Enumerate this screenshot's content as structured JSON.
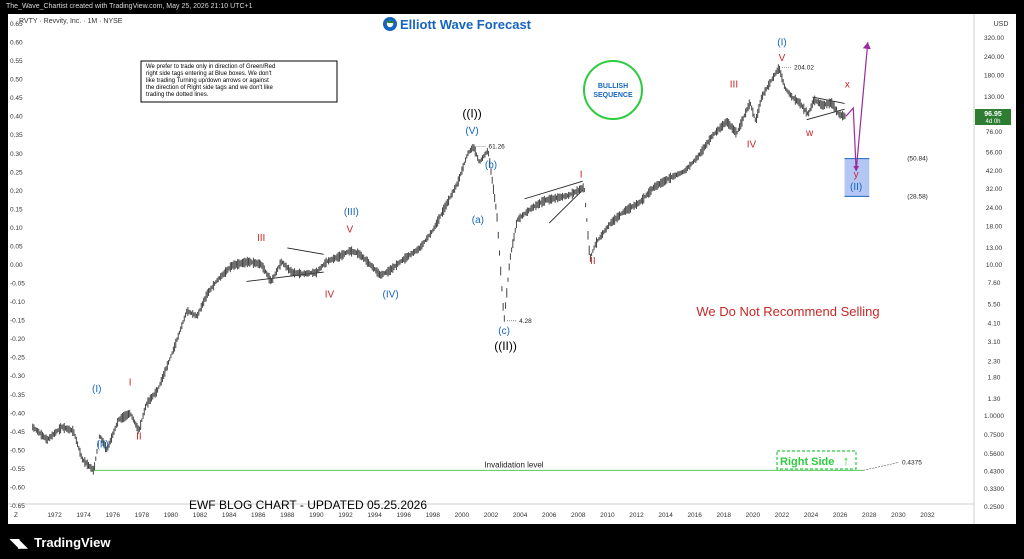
{
  "header": {
    "caption": "The_Wave_Chartist created with TradingView.com, May 25, 2026 21:10 UTC+1",
    "symbol_line": "RVTY · Revvity, Inc. · 1M · NYSE"
  },
  "footer": {
    "brand": "TradingView",
    "brand_icon": "tradingview-logo-icon"
  },
  "brand": {
    "name": "Elliott Wave Forecast",
    "icon": "ewf-logo-icon",
    "color": "#1565c0",
    "accent": "#2e7d32"
  },
  "notice": {
    "lines": [
      "We prefer to trade only in direction of Green/Red",
      "right side tags entering at Blue boxes. We don't",
      "like trading Turning up/down arrows or against",
      "the direction of Right side tags and we don't like",
      "trading the dotted lines."
    ]
  },
  "bullish": {
    "line1": "BULLISH",
    "line2": "SEQUENCE",
    "color": "#1565c0",
    "ring_color": "#2ecc40"
  },
  "warning_text": "We Do Not Recommend Selling",
  "blog_title": "EWF BLOG CHART - UPDATED 05.25.2026",
  "right_side": {
    "label": "Right Side",
    "arrow": "↑",
    "color": "#2ecc40"
  },
  "invalidation": {
    "label": "Invalidation level",
    "value": "0.4375"
  },
  "left_axis": {
    "ticks": [
      "0.65",
      "0.60",
      "0.55",
      "0.50",
      "0.45",
      "0.40",
      "0.35",
      "0.30",
      "0.25",
      "0.20",
      "0.15",
      "0.10",
      "0.05",
      "0.00",
      "-0.05",
      "-0.10",
      "-0.15",
      "-0.20",
      "-0.25",
      "-0.30",
      "-0.35",
      "-0.40",
      "-0.45",
      "-0.50",
      "-0.55",
      "-0.60",
      "-0.65"
    ]
  },
  "right_axis": {
    "currency": "USD",
    "ticks": [
      "320.00",
      "240.00",
      "180.00",
      "130.00",
      "96.95",
      "76.00",
      "56.00",
      "42.00",
      "32.00",
      "24.00",
      "18.00",
      "13.00",
      "10.00",
      "7.60",
      "5.50",
      "4.10",
      "3.10",
      "2.30",
      "1.80",
      "1.30",
      "1.0000",
      "0.7500",
      "0.5600",
      "0.4300",
      "0.3300",
      "0.2500"
    ],
    "current_price": "96.95",
    "countdown": "4d 0h"
  },
  "x_axis": {
    "ticks": [
      "1972",
      "1974",
      "1976",
      "1978",
      "1980",
      "1982",
      "1984",
      "1986",
      "1988",
      "1990",
      "1992",
      "1994",
      "1996",
      "1998",
      "2000",
      "2002",
      "2004",
      "2006",
      "2008",
      "2010",
      "2012",
      "2014",
      "2016",
      "2018",
      "2020",
      "2022",
      "2024",
      "2026",
      "2028",
      "2030",
      "2032"
    ],
    "corner": "Z"
  },
  "target_box": {
    "upper": "(50.84)",
    "lower": "(28.58)",
    "color": "#a7bdf2"
  },
  "chart_data": {
    "type": "line",
    "title": "RVTY · Revvity, Inc. · 1M · NYSE",
    "scale": "log",
    "x": [
      1970.5,
      1971.5,
      1972.5,
      1973.3,
      1973.9,
      1974.7,
      1975.1,
      1975.6,
      1976.4,
      1977.2,
      1977.8,
      1978.3,
      1979.1,
      1980.2,
      1981.1,
      1981.8,
      1982.5,
      1983.2,
      1984.2,
      1985.3,
      1986.2,
      1986.9,
      1987.6,
      1988.3,
      1989.1,
      1990.0,
      1990.7,
      1991.6,
      1992.3,
      1992.9,
      1993.5,
      1994.4,
      1995.0,
      1996.0,
      1997.1,
      1998.0,
      1998.9,
      1999.7,
      2000.4,
      2000.8,
      2001.2,
      2001.8,
      2002.4,
      2002.9,
      2003.3,
      2003.8,
      2004.8,
      2005.7,
      2006.5,
      2007.3,
      2007.9,
      2008.4,
      2008.8,
      2009.2,
      2010.2,
      2011.2,
      2012.2,
      2013.2,
      2014.3,
      2015.3,
      2016.2,
      2017.2,
      2018.2,
      2018.9,
      2019.8,
      2020.2,
      2020.6,
      2021.3,
      2021.8,
      2022.2,
      2022.7,
      2023.2,
      2023.8,
      2024.2,
      2024.8,
      2025.4,
      2025.9,
      2026.4
    ],
    "y": [
      0.85,
      0.7,
      0.85,
      0.8,
      0.52,
      0.4375,
      0.75,
      0.6,
      0.95,
      1.05,
      0.8,
      1.2,
      1.5,
      2.8,
      5.0,
      4.6,
      6.5,
      8.0,
      10.0,
      10.6,
      10.2,
      7.8,
      10.6,
      9.0,
      8.8,
      9.0,
      10.6,
      11.5,
      12.5,
      12.0,
      10.6,
      8.6,
      9.2,
      11.0,
      13.0,
      17.0,
      25.0,
      35.0,
      55.0,
      61.26,
      48.0,
      58.0,
      22.0,
      4.28,
      11.0,
      20.0,
      24.0,
      27.0,
      28.0,
      29.0,
      31.0,
      33.0,
      11.0,
      14.0,
      19.0,
      23.0,
      26.0,
      33.0,
      38.0,
      42.0,
      52.0,
      72.0,
      90.0,
      75.0,
      120.0,
      90.0,
      130.0,
      170.0,
      204.02,
      150.0,
      130.0,
      120.0,
      100.0,
      125.0,
      115.0,
      120.0,
      100.0,
      96.95
    ],
    "y_unit": "USD",
    "key_levels": [
      {
        "label": "61.26",
        "x": 2000.8,
        "y": 61.26
      },
      {
        "label": "4.28",
        "x": 2002.9,
        "y": 4.28
      },
      {
        "label": "204.02",
        "x": 2021.8,
        "y": 204.02
      },
      {
        "label": "0.4375",
        "x": 1974.7,
        "y": 0.4375
      }
    ],
    "target_zone": {
      "x_start": 2026.3,
      "x_end": 2028.0,
      "upper": 50.84,
      "lower": 28.58
    },
    "invalidation_level": 0.4375,
    "wave_labels": [
      {
        "text": "(I)",
        "x": 1974.9,
        "y": 1.45,
        "color": "#1565c0"
      },
      {
        "text": "(II)",
        "x": 1975.3,
        "y": 0.62,
        "color": "#1565c0"
      },
      {
        "text": "I",
        "x": 1977.2,
        "y": 1.6,
        "color": "#c62828"
      },
      {
        "text": "II",
        "x": 1977.8,
        "y": 0.7,
        "color": "#c62828"
      },
      {
        "text": "III",
        "x": 1986.2,
        "y": 14.5,
        "color": "#c62828"
      },
      {
        "text": "IV",
        "x": 1990.9,
        "y": 6.1,
        "color": "#c62828"
      },
      {
        "text": "V",
        "x": 1992.3,
        "y": 16.5,
        "color": "#c62828"
      },
      {
        "text": "(III)",
        "x": 1992.4,
        "y": 21.5,
        "color": "#1565c0"
      },
      {
        "text": "(IV)",
        "x": 1995.1,
        "y": 6.1,
        "color": "#1565c0"
      },
      {
        "text": "((I))",
        "x": 2000.7,
        "y": 95.0,
        "color": "#000000"
      },
      {
        "text": "(V)",
        "x": 2000.7,
        "y": 74.0,
        "color": "#1565c0"
      },
      {
        "text": "(b)",
        "x": 2002.0,
        "y": 44.0,
        "color": "#1565c0"
      },
      {
        "text": "(a)",
        "x": 2001.1,
        "y": 19.0,
        "color": "#1565c0"
      },
      {
        "text": "(c)",
        "x": 2002.9,
        "y": 3.5,
        "color": "#1565c0"
      },
      {
        "text": "((II))",
        "x": 2003.0,
        "y": 2.75,
        "color": "#000000"
      },
      {
        "text": "I",
        "x": 2008.2,
        "y": 38.0,
        "color": "#c62828"
      },
      {
        "text": "II",
        "x": 2009.0,
        "y": 10.2,
        "color": "#c62828"
      },
      {
        "text": "III",
        "x": 2018.7,
        "y": 150.0,
        "color": "#c62828"
      },
      {
        "text": "IV",
        "x": 2019.9,
        "y": 60.0,
        "color": "#c62828"
      },
      {
        "text": "V",
        "x": 2022.0,
        "y": 225.0,
        "color": "#c62828"
      },
      {
        "text": "(I)",
        "x": 2022.0,
        "y": 285.0,
        "color": "#1565c0"
      },
      {
        "text": "w",
        "x": 2023.9,
        "y": 72.0,
        "color": "#c62828"
      },
      {
        "text": "x",
        "x": 2026.5,
        "y": 150.0,
        "color": "#c62828"
      },
      {
        "text": "y",
        "x": 2027.1,
        "y": 38.0,
        "color": "#c62828"
      },
      {
        "text": "(II)",
        "x": 2027.1,
        "y": 31.5,
        "color": "#1565c0"
      }
    ],
    "projection": [
      {
        "x": 2026.4,
        "y": 96.95
      },
      {
        "x": 2026.9,
        "y": 110.0
      },
      {
        "x": 2027.1,
        "y": 42.0
      },
      {
        "x": 2027.9,
        "y": 300.0
      }
    ],
    "triangles": [
      {
        "upper": [
          [
            1988.0,
            13.0
          ],
          [
            1990.5,
            11.8
          ]
        ],
        "lower": [
          [
            1985.2,
            7.8
          ],
          [
            1990.5,
            9.0
          ]
        ]
      },
      {
        "upper": [
          [
            2004.3,
            27.5
          ],
          [
            2008.3,
            36.0
          ]
        ],
        "lower": [
          [
            2006.0,
            19.0
          ],
          [
            2008.3,
            31.5
          ]
        ]
      },
      {
        "upper": [
          [
            2024.1,
            130.0
          ],
          [
            2026.3,
            118.0
          ]
        ],
        "lower": [
          [
            2023.7,
            92.0
          ],
          [
            2026.3,
            108.0
          ]
        ]
      }
    ],
    "left_scale_range": [
      -0.65,
      0.65
    ],
    "grid": false
  }
}
